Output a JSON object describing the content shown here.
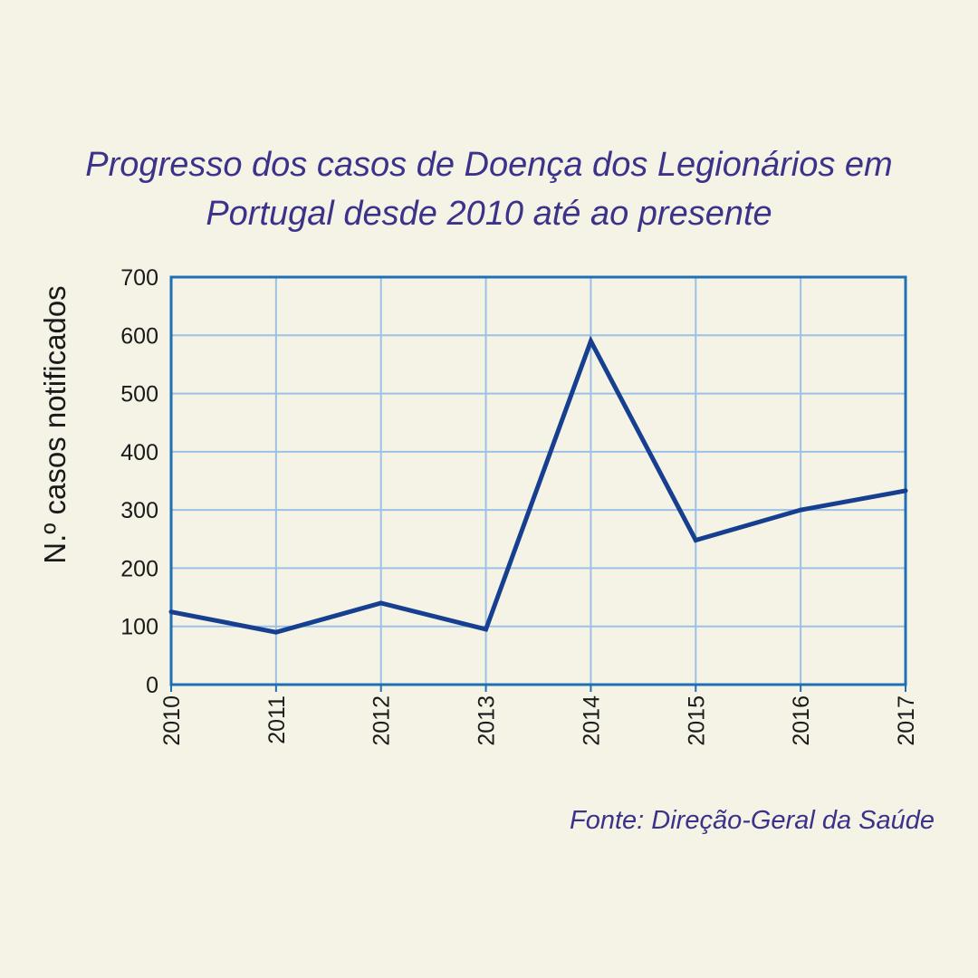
{
  "chart_data": {
    "type": "line",
    "title_lines": [
      "Progresso dos casos de Doença dos Legionários em",
      "Portugal desde 2010 até ao presente"
    ],
    "xlabel": "",
    "ylabel": "N.º casos notificados",
    "categories": [
      "2010",
      "2011",
      "2012",
      "2013",
      "2014",
      "2015",
      "2016",
      "2017"
    ],
    "series": [
      {
        "values": [
          125,
          90,
          140,
          95,
          590,
          248,
          300,
          333
        ]
      }
    ],
    "ylim": [
      0,
      700
    ],
    "yticks": [
      0,
      100,
      200,
      300,
      400,
      500,
      600,
      700
    ],
    "grid": true,
    "colors": {
      "line": "#173f8f",
      "frame": "#1f6fb5",
      "grid": "#9cc1e6",
      "title": "#3b3289",
      "background": "#f5f3e6"
    },
    "source": "Fonte: Direção-Geral da Saúde"
  }
}
